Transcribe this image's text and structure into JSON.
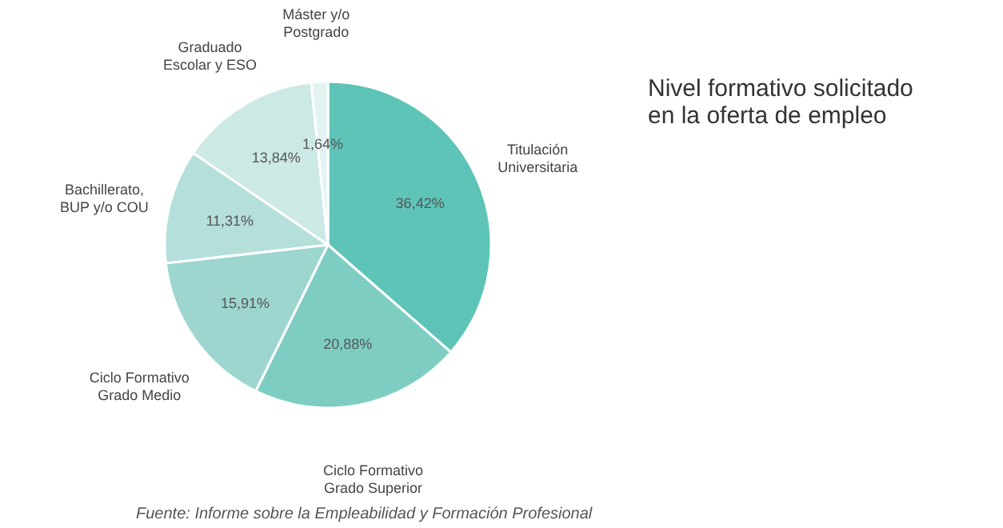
{
  "chart_data": {
    "type": "pie",
    "title": "Nivel formativo solicitado\nen la oferta de empleo",
    "categories": [
      "Titulación\nUniversitaria",
      "Ciclo Formativo\nGrado Superior",
      "Ciclo Formativo\nGrado Medio",
      "Bachillerato,\nBUP y/o COU",
      "Graduado\nEscolar y ESO",
      "Máster y/o\nPostgrado"
    ],
    "values": [
      36.42,
      20.88,
      15.91,
      11.31,
      13.84,
      1.64
    ],
    "value_labels": [
      "36,42%",
      "20,88%",
      "15,91%",
      "11,31%",
      "13,84%",
      "1,64%"
    ],
    "colors": [
      "#5fc4b8",
      "#7ecdc3",
      "#9dd6cf",
      "#b5dfda",
      "#cce9e5",
      "#e3f3f1"
    ],
    "annotations": [
      "Fuente: Informe sobre la Empleabilidad y Formación Profesional"
    ]
  }
}
